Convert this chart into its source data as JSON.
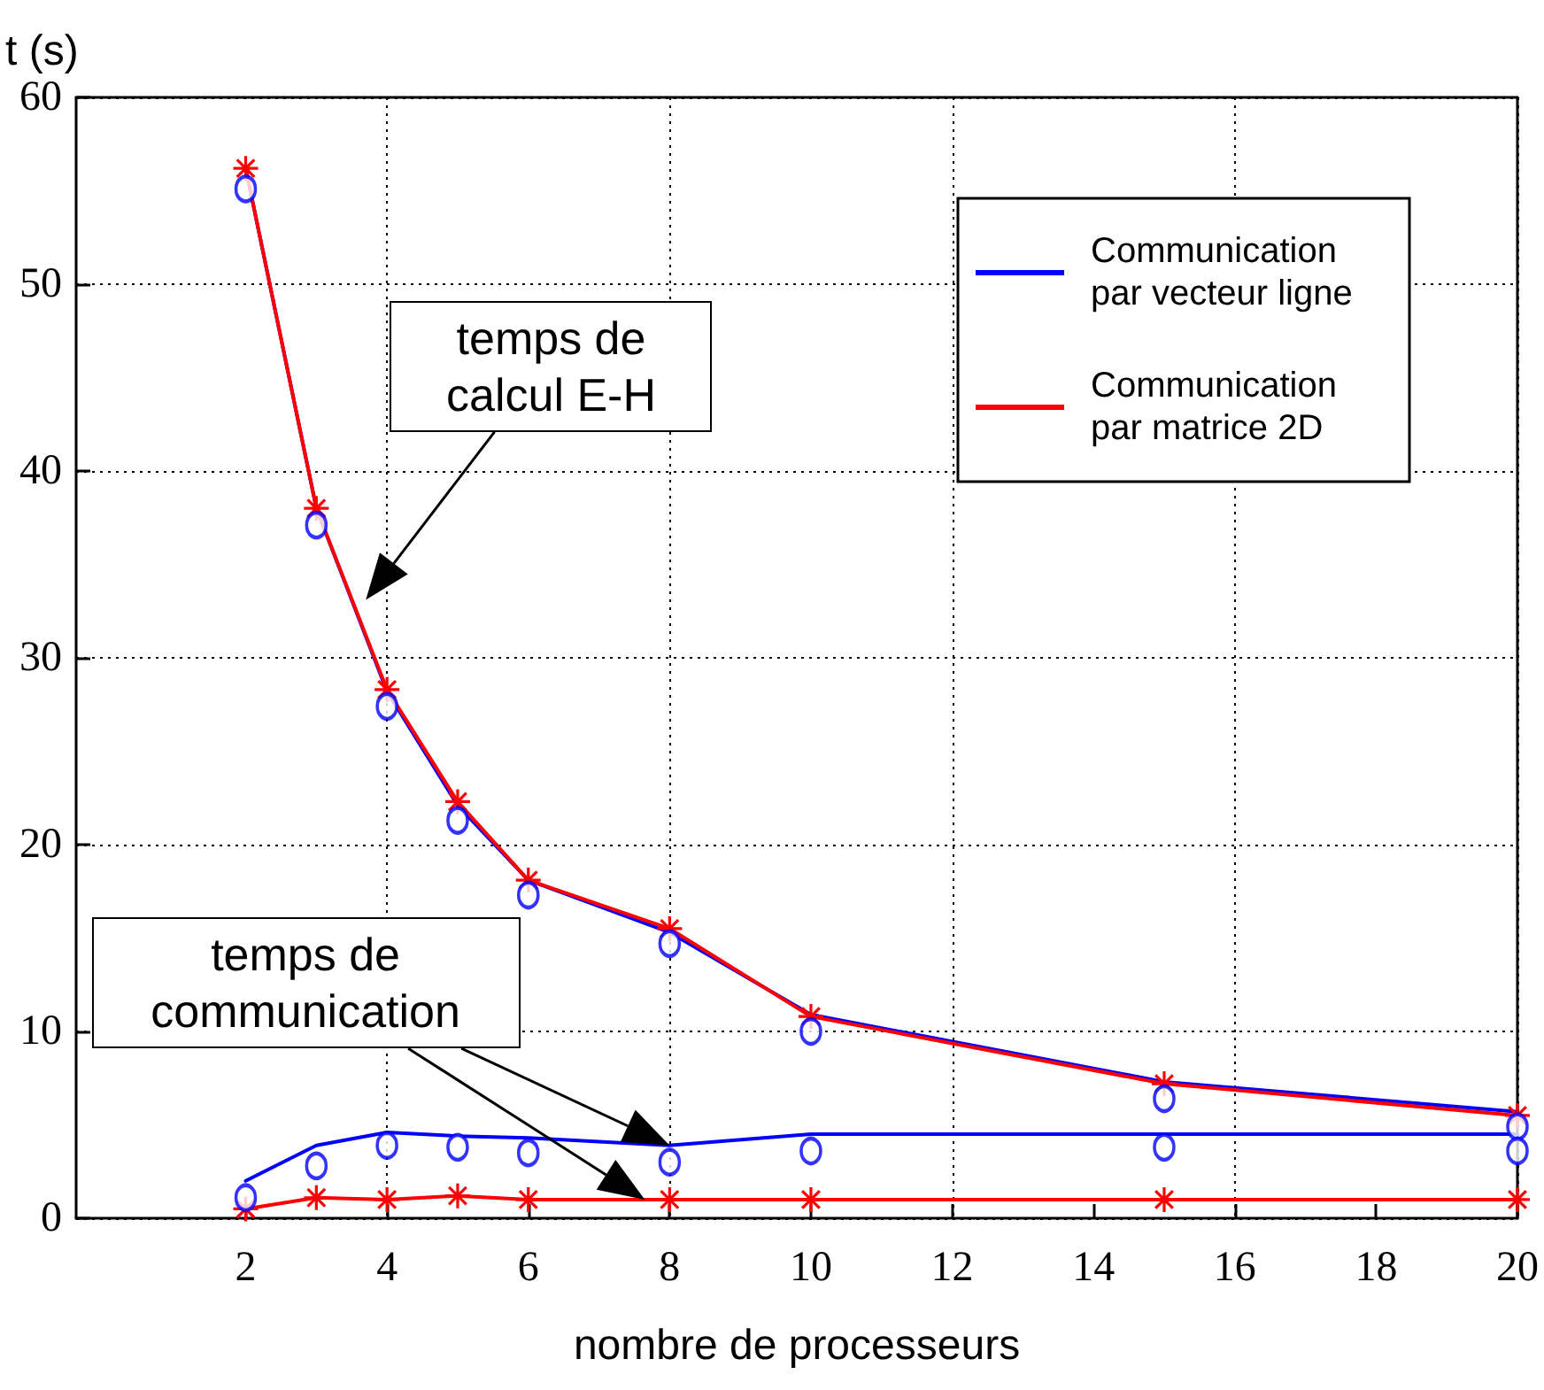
{
  "chart_data": {
    "type": "line",
    "xlabel": "nombre de processeurs",
    "ylabel": "t (s)",
    "x": [
      2,
      3,
      4,
      5,
      6,
      8,
      10,
      15,
      20
    ],
    "xlim": [
      -0.4,
      20
    ],
    "xticks": [
      2,
      4,
      6,
      8,
      10,
      12,
      14,
      16,
      18,
      20
    ],
    "ylim": [
      0,
      60
    ],
    "yticks": [
      0,
      10,
      20,
      30,
      40,
      50,
      60
    ],
    "grid": true,
    "legend": "top right",
    "series": [
      {
        "name": "Communication par vecteur ligne",
        "color": "#0000ff",
        "marker": "none",
        "values": [
          56.2,
          38.0,
          28.2,
          22.1,
          18.1,
          15.3,
          10.9,
          7.3,
          5.7
        ]
      },
      {
        "color": "#0000ff",
        "marker": "none",
        "values": [
          2.0,
          3.9,
          4.6,
          4.4,
          4.3,
          3.9,
          4.5,
          4.5,
          4.5
        ]
      },
      {
        "color": "#0000ff",
        "type": "scatter",
        "marker": "circle",
        "values": [
          55.1,
          37.1,
          27.4,
          21.3,
          17.3,
          14.7,
          10.0,
          6.4,
          4.9
        ]
      },
      {
        "color": "#0000ff",
        "type": "scatter",
        "marker": "circle",
        "values": [
          1.1,
          2.8,
          3.9,
          3.8,
          3.5,
          3.0,
          3.6,
          3.8,
          3.6
        ]
      },
      {
        "name": "Communication par matrice 2D",
        "color": "#ff0000",
        "marker": "cross",
        "values": [
          56.2,
          38.0,
          28.3,
          22.3,
          18.1,
          15.5,
          10.8,
          7.2,
          5.5
        ]
      },
      {
        "color": "#ff0000",
        "marker": "cross",
        "values": [
          0.5,
          1.1,
          1.0,
          1.2,
          1.0,
          1.0,
          1.0,
          1.0,
          1.0
        ]
      }
    ],
    "annotations": [
      "temps de calcul E-H",
      "temps de communication"
    ]
  }
}
